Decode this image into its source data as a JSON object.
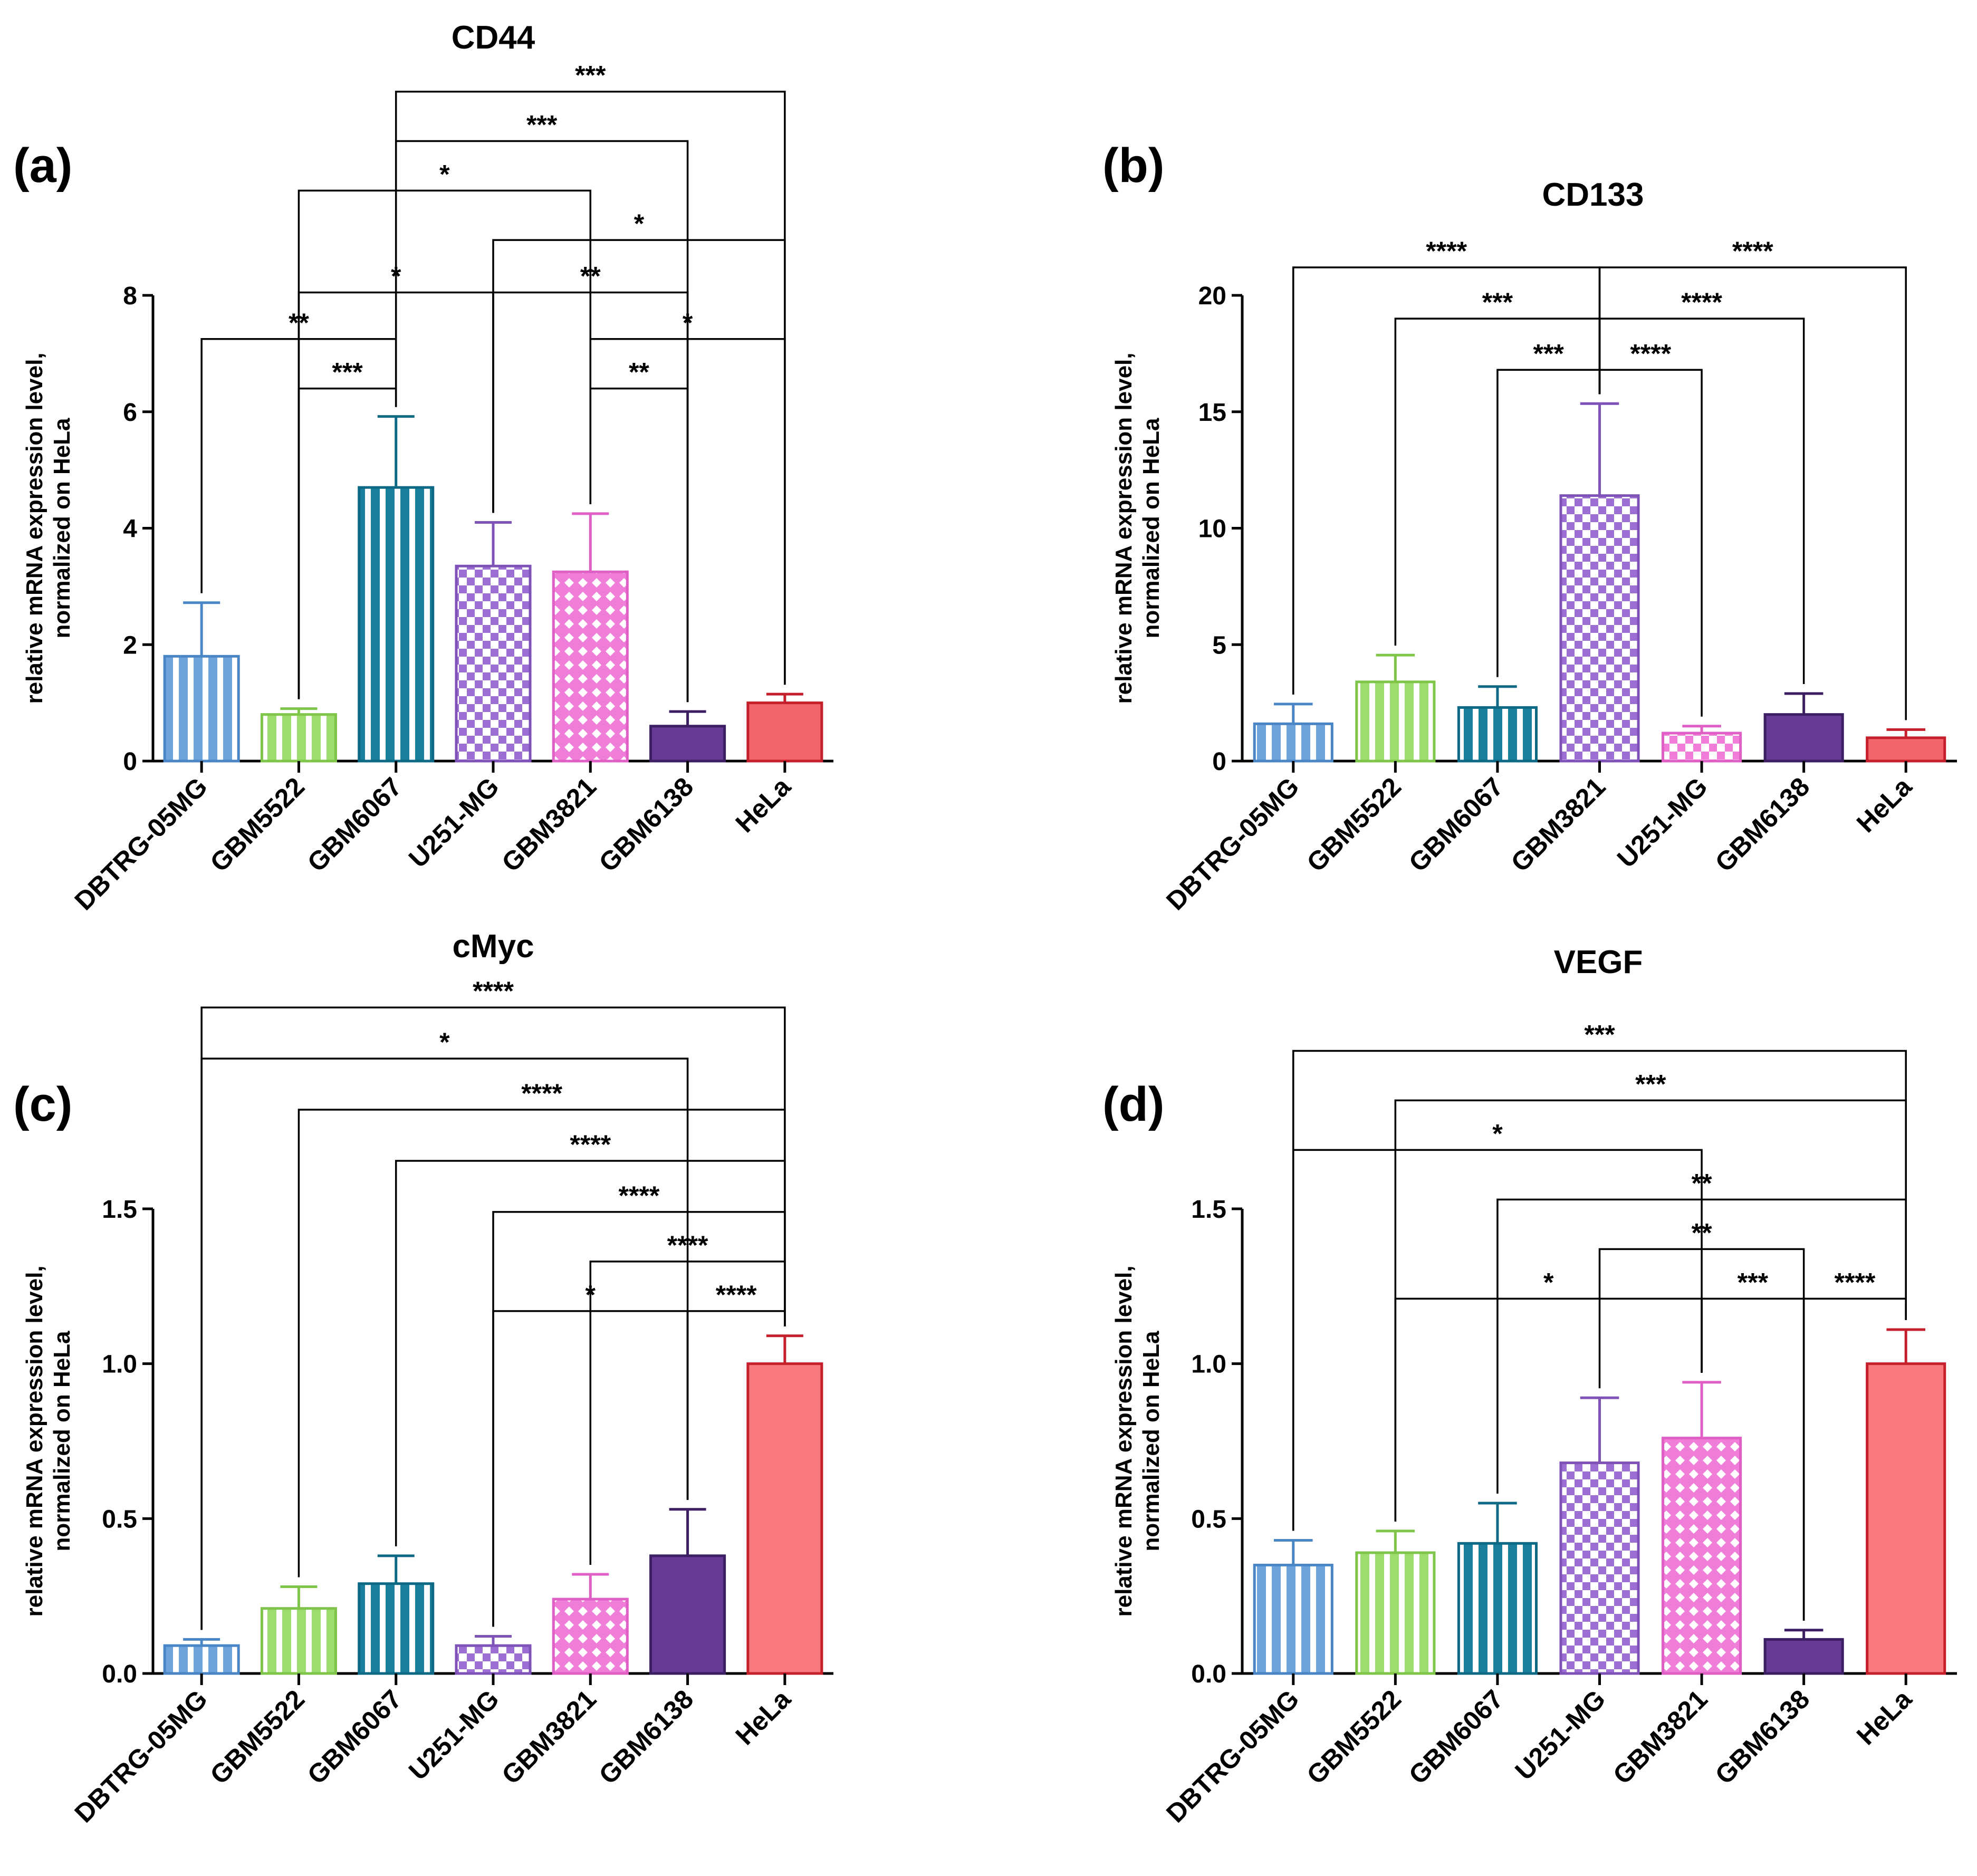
{
  "figure": {
    "panels": [
      {
        "label": "(a)"
      },
      {
        "label": "(b)"
      },
      {
        "label": "(c)"
      },
      {
        "label": "(d)"
      }
    ]
  },
  "chart_data": [
    {
      "type": "bar",
      "title": "CD44",
      "ylabel_lines": [
        "relative mRNA expression level,",
        "normalized on HeLa"
      ],
      "xlabel": "",
      "ylim": [
        0,
        8
      ],
      "yticks": [
        "0",
        "2",
        "4",
        "6",
        "8"
      ],
      "categories": [
        "DBTRG-05MG",
        "GBM5522",
        "GBM6067",
        "U251-MG",
        "GBM3821",
        "GBM6138",
        "HeLa"
      ],
      "values": [
        1.8,
        0.8,
        4.7,
        3.35,
        3.25,
        0.6,
        1.0
      ],
      "errors": [
        0.92,
        0.1,
        1.22,
        0.75,
        1.0,
        0.25,
        0.15
      ],
      "colors": [
        "#6fa3dc",
        "#9ddc6e",
        "#1a7f9c",
        "#9b6fd4",
        "#f07ed8",
        "#673b95",
        "#f2656b"
      ],
      "edgecolors": [
        "#4a86c6",
        "#7fc54a",
        "#0e6a84",
        "#7f52b8",
        "#e05fc5",
        "#3c1f62",
        "#c41f2a"
      ],
      "patterns": [
        "vstripe",
        "vstripe",
        "vstripe",
        "checker",
        "diamond",
        "solid",
        "solid"
      ],
      "comparisons": [
        {
          "a": 0,
          "b": 2,
          "y": 7.25,
          "stars": "**"
        },
        {
          "a": 1,
          "b": 2,
          "y": 6.4,
          "stars": "***"
        },
        {
          "a": 1,
          "b": 3,
          "y": 8.05,
          "stars": "*"
        },
        {
          "a": 1,
          "b": 4,
          "y": 9.8,
          "stars": "*"
        },
        {
          "a": 2,
          "b": 5,
          "y": 10.65,
          "stars": "***"
        },
        {
          "a": 2,
          "b": 6,
          "y": 11.5,
          "stars": "***"
        },
        {
          "a": 3,
          "b": 5,
          "y": 8.05,
          "stars": "**"
        },
        {
          "a": 3,
          "b": 6,
          "y": 8.95,
          "stars": "*"
        },
        {
          "a": 4,
          "b": 5,
          "y": 6.4,
          "stars": "**"
        },
        {
          "a": 4,
          "b": 6,
          "y": 7.25,
          "stars": "*"
        }
      ]
    },
    {
      "type": "bar",
      "title": "CD133",
      "ylabel_lines": [
        "relative mRNA expression level,",
        "normalized on HeLa"
      ],
      "xlabel": "",
      "ylim": [
        0,
        20
      ],
      "yticks": [
        "0",
        "5",
        "10",
        "15",
        "20"
      ],
      "categories": [
        "DBTRG-05MG",
        "GBM5522",
        "GBM6067",
        "GBM3821",
        "U251-MG",
        "GBM6138",
        "HeLa"
      ],
      "values": [
        1.6,
        3.4,
        2.3,
        11.4,
        1.2,
        2.0,
        1.0
      ],
      "errors": [
        0.85,
        1.15,
        0.9,
        3.95,
        0.3,
        0.9,
        0.35
      ],
      "colors": [
        "#6fa3dc",
        "#9ddc6e",
        "#1a7f9c",
        "#9b6fd4",
        "#f07ed8",
        "#673b95",
        "#f2656b"
      ],
      "edgecolors": [
        "#4a86c6",
        "#7fc54a",
        "#0e6a84",
        "#7f52b8",
        "#e05fc5",
        "#3c1f62",
        "#c41f2a"
      ],
      "patterns": [
        "vstripe",
        "vstripe",
        "vstripe",
        "checker",
        "checker",
        "solid",
        "solid"
      ],
      "comparisons": [
        {
          "a": 0,
          "b": 3,
          "y": 21.2,
          "stars": "****"
        },
        {
          "a": 1,
          "b": 3,
          "y": 19.0,
          "stars": "***"
        },
        {
          "a": 2,
          "b": 3,
          "y": 16.8,
          "stars": "***"
        },
        {
          "a": 3,
          "b": 4,
          "y": 16.8,
          "stars": "****"
        },
        {
          "a": 3,
          "b": 5,
          "y": 19.0,
          "stars": "****"
        },
        {
          "a": 3,
          "b": 6,
          "y": 21.2,
          "stars": "****"
        }
      ]
    },
    {
      "type": "bar",
      "title": "cMyc",
      "ylabel_lines": [
        "relative mRNA expression level,",
        "normalized on HeLa"
      ],
      "xlabel": "",
      "ylim": [
        0,
        1.5
      ],
      "yticks": [
        "0.0",
        "0.5",
        "1.0",
        "1.5"
      ],
      "categories": [
        "DBTRG-05MG",
        "GBM5522",
        "GBM6067",
        "U251-MG",
        "GBM3821",
        "GBM6138",
        "HeLa"
      ],
      "values": [
        0.09,
        0.21,
        0.29,
        0.09,
        0.24,
        0.38,
        1.0
      ],
      "errors": [
        0.02,
        0.07,
        0.09,
        0.03,
        0.08,
        0.15,
        0.09
      ],
      "colors": [
        "#6fa3dc",
        "#9ddc6e",
        "#1a7f9c",
        "#9b6fd4",
        "#f07ed8",
        "#673b95",
        "#f87a7e"
      ],
      "edgecolors": [
        "#4a86c6",
        "#7fc54a",
        "#0e6a84",
        "#7f52b8",
        "#e05fc5",
        "#3c1f62",
        "#c41f2a"
      ],
      "patterns": [
        "vstripe",
        "vstripe",
        "vstripe",
        "checker",
        "diamond",
        "solid",
        "solid"
      ],
      "comparisons": [
        {
          "a": 0,
          "b": 6,
          "y": 2.15,
          "stars": "****"
        },
        {
          "a": 0,
          "b": 5,
          "y": 1.985,
          "stars": "*"
        },
        {
          "a": 1,
          "b": 6,
          "y": 1.82,
          "stars": "****"
        },
        {
          "a": 2,
          "b": 6,
          "y": 1.655,
          "stars": "****"
        },
        {
          "a": 3,
          "b": 6,
          "y": 1.49,
          "stars": "****"
        },
        {
          "a": 4,
          "b": 6,
          "y": 1.33,
          "stars": "****"
        },
        {
          "a": 3,
          "b": 5,
          "y": 1.17,
          "stars": "*"
        },
        {
          "a": 5,
          "b": 6,
          "y": 1.17,
          "stars": "****"
        }
      ]
    },
    {
      "type": "bar",
      "title": "VEGF",
      "ylabel_lines": [
        "relative mRNA expression level,",
        "normalized on HeLa"
      ],
      "xlabel": "",
      "ylim": [
        0,
        1.5
      ],
      "yticks": [
        "0.0",
        "0.5",
        "1.0",
        "1.5"
      ],
      "categories": [
        "DBTRG-05MG",
        "GBM5522",
        "GBM6067",
        "U251-MG",
        "GBM3821",
        "GBM6138",
        "HeLa"
      ],
      "values": [
        0.35,
        0.39,
        0.42,
        0.68,
        0.76,
        0.11,
        1.0
      ],
      "errors": [
        0.08,
        0.07,
        0.13,
        0.21,
        0.18,
        0.03,
        0.11
      ],
      "colors": [
        "#6fa3dc",
        "#9ddc6e",
        "#1a7f9c",
        "#9b6fd4",
        "#f07ed8",
        "#673b95",
        "#f87a7e"
      ],
      "edgecolors": [
        "#4a86c6",
        "#7fc54a",
        "#0e6a84",
        "#7f52b8",
        "#e05fc5",
        "#3c1f62",
        "#c41f2a"
      ],
      "patterns": [
        "vstripe",
        "vstripe",
        "vstripe",
        "checker",
        "diamond",
        "solid",
        "solid"
      ],
      "comparisons": [
        {
          "a": 0,
          "b": 6,
          "y": 2.01,
          "stars": "***"
        },
        {
          "a": 1,
          "b": 6,
          "y": 1.85,
          "stars": "***"
        },
        {
          "a": 0,
          "b": 4,
          "y": 1.69,
          "stars": "*"
        },
        {
          "a": 2,
          "b": 6,
          "y": 1.53,
          "stars": "**"
        },
        {
          "a": 3,
          "b": 5,
          "y": 1.37,
          "stars": "**"
        },
        {
          "a": 1,
          "b": 4,
          "y": 1.21,
          "stars": "*"
        },
        {
          "a": 4,
          "b": 5,
          "y": 1.21,
          "stars": "***"
        },
        {
          "a": 5,
          "b": 6,
          "y": 1.21,
          "stars": "****"
        }
      ]
    }
  ]
}
